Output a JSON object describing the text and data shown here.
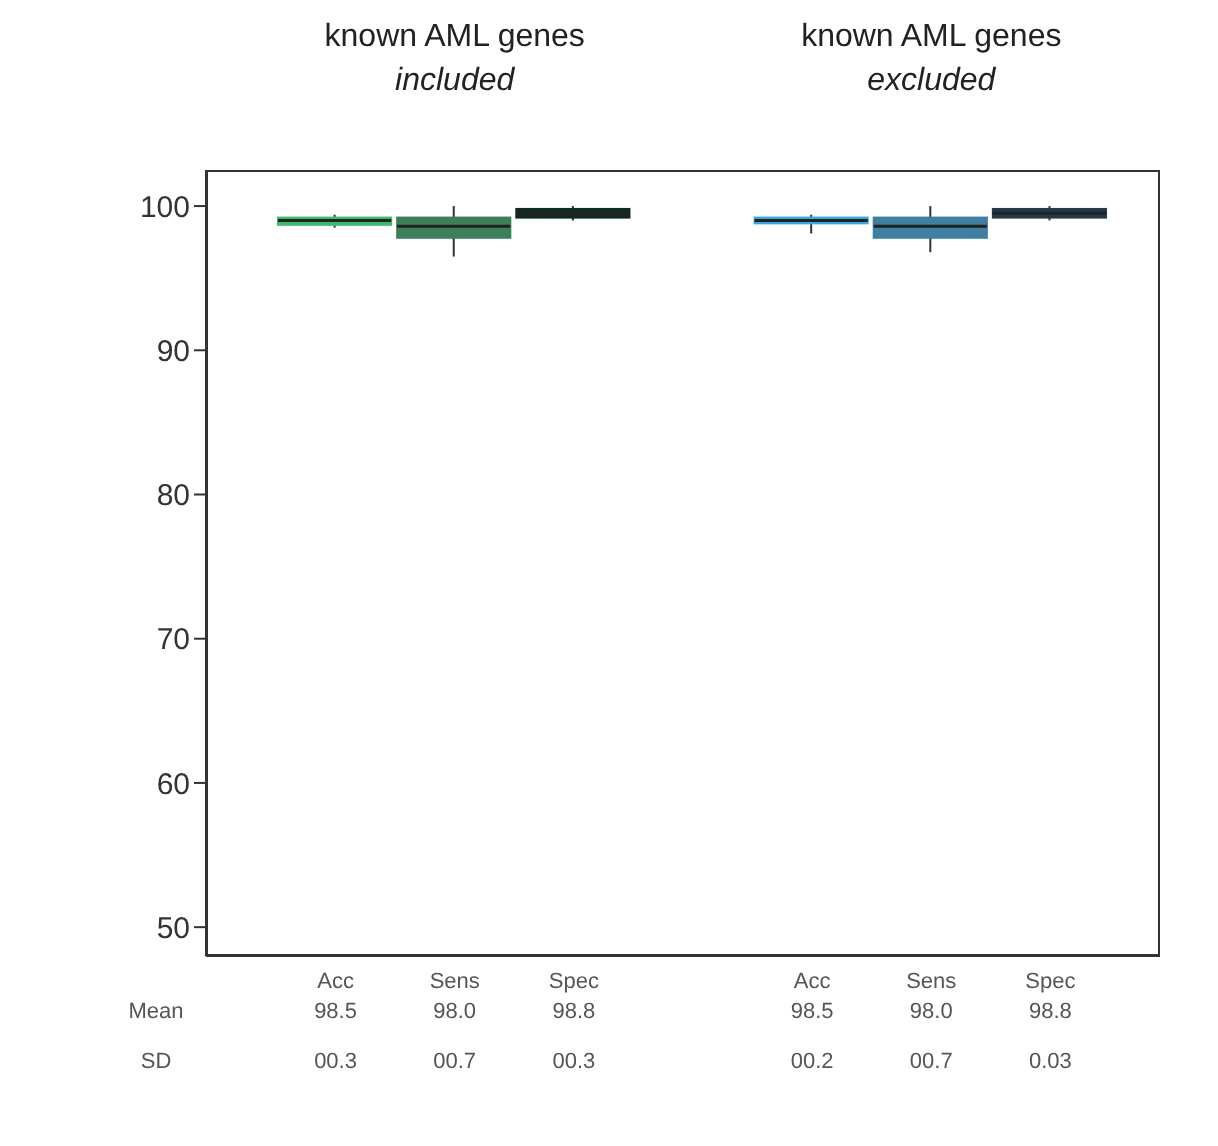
{
  "chart_data": {
    "type": "box",
    "categories": [
      "Acc",
      "Sens",
      "Spec",
      null,
      "Acc",
      "Sens",
      "Spec"
    ],
    "boxes": [
      {
        "low": 98.5,
        "q1": 98.7,
        "median": 99.0,
        "q3": 99.2,
        "high": 99.4
      },
      {
        "low": 96.5,
        "q1": 97.8,
        "median": 98.6,
        "q3": 99.2,
        "high": 100
      },
      {
        "low": 99.0,
        "q1": 99.2,
        "median": 99.5,
        "q3": 99.8,
        "high": 100
      },
      null,
      {
        "low": 98.1,
        "q1": 98.8,
        "median": 99.0,
        "q3": 99.2,
        "high": 99.4
      },
      {
        "low": 96.8,
        "q1": 97.8,
        "median": 98.6,
        "q3": 99.2,
        "high": 100
      },
      {
        "low": 99.0,
        "q1": 99.2,
        "median": 99.5,
        "q3": 99.8,
        "high": 100
      }
    ],
    "colors": [
      "#3cba6e",
      "#3d7f5a",
      "#0f2a1e",
      null,
      "#3aa8dc",
      "#3f7fa0",
      "#26394a"
    ],
    "ylim": [
      48,
      102.5
    ],
    "yticks": [
      50,
      60,
      70,
      80,
      90,
      100
    ],
    "annotations": [
      "known AML genes included",
      "known AML genes excluded",
      "Mean 98.5 98.0 98.8 98.5 98.0 98.8",
      "SD 00.3 00.7 00.3 00.2 00.7 0.03"
    ]
  }
}
